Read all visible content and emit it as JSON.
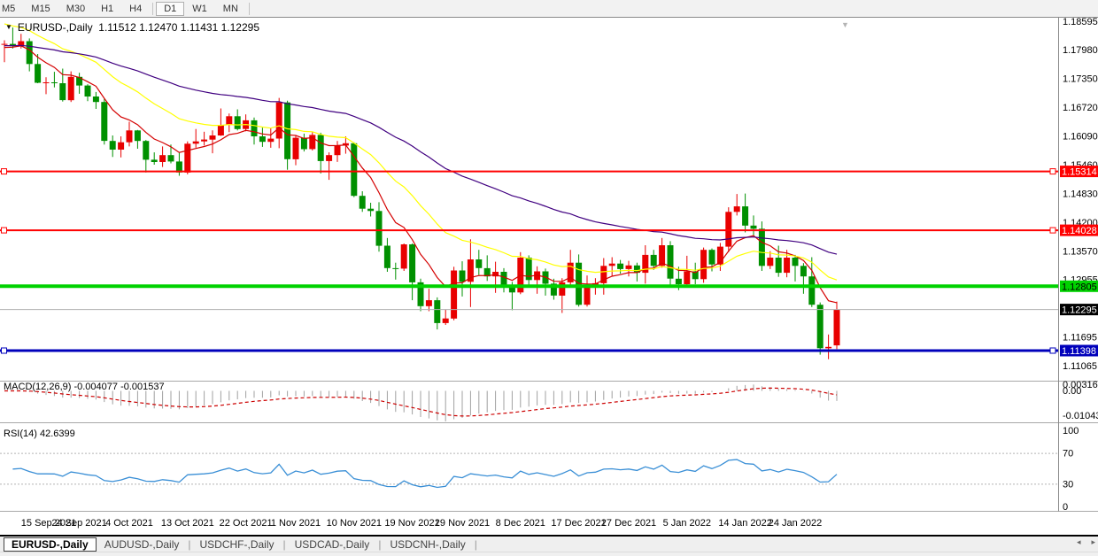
{
  "toolbar": {
    "timeframes": [
      {
        "label": "M5",
        "active": false
      },
      {
        "label": "M15",
        "active": false
      },
      {
        "label": "M30",
        "active": false
      },
      {
        "label": "H1",
        "active": false
      },
      {
        "label": "H4",
        "active": false
      },
      {
        "label": "D1",
        "active": true
      },
      {
        "label": "W1",
        "active": false
      },
      {
        "label": "MN",
        "active": false
      }
    ]
  },
  "chart_header": {
    "title": "EURUSD-,Daily  1.11512 1.12470 1.11431 1.12295"
  },
  "indicators": {
    "macd_label": "MACD(12,26,9) -0.004077 -0.001537",
    "rsi_label": "RSI(14) 42.6399"
  },
  "tabs": {
    "items": [
      "EURUSD-,Daily",
      "AUDUSD-,Daily",
      "USDCHF-,Daily",
      "USDCAD-,Daily",
      "USDCNH-,Daily"
    ],
    "active_index": 0,
    "scroll_left": "◂",
    "scroll_right": "▸"
  },
  "chart_data": {
    "type": "candlestick",
    "symbol": "EURUSD-,Daily",
    "timeframe": "D1",
    "last_ohlc": {
      "open": 1.11512,
      "high": 1.1247,
      "low": 1.11431,
      "close": 1.12295
    },
    "bull_color": "#e80000",
    "bear_color": "#009000",
    "candles": [
      [
        "13 Sep 2021",
        1.1809,
        1.1818,
        1.177,
        1.181
      ],
      [
        "14 Sep 2021",
        1.181,
        1.1846,
        1.18,
        1.1805
      ],
      [
        "15 Sep 2021",
        1.1805,
        1.1832,
        1.18,
        1.1816
      ],
      [
        "16 Sep 2021",
        1.1816,
        1.1822,
        1.175,
        1.1766
      ],
      [
        "17 Sep 2021",
        1.1766,
        1.1788,
        1.1724,
        1.1725
      ],
      [
        "20 Sep 2021",
        1.1725,
        1.1737,
        1.17,
        1.1726
      ],
      [
        "21 Sep 2021",
        1.1726,
        1.1749,
        1.1715,
        1.1724
      ],
      [
        "22 Sep 2021",
        1.1724,
        1.1756,
        1.1684,
        1.1687
      ],
      [
        "23 Sep 2021",
        1.1687,
        1.175,
        1.1683,
        1.1738
      ],
      [
        "24 Sep 2021",
        1.1738,
        1.1747,
        1.1701,
        1.1719
      ],
      [
        "27 Sep 2021",
        1.1719,
        1.1722,
        1.1685,
        1.1695
      ],
      [
        "28 Sep 2021",
        1.1695,
        1.1705,
        1.1668,
        1.1683
      ],
      [
        "29 Sep 2021",
        1.1683,
        1.169,
        1.159,
        1.1598
      ],
      [
        "30 Sep 2021",
        1.1598,
        1.161,
        1.1563,
        1.1579
      ],
      [
        "1 Oct 2021",
        1.1579,
        1.1608,
        1.1562,
        1.1595
      ],
      [
        "4 Oct 2021",
        1.1595,
        1.164,
        1.1586,
        1.1621
      ],
      [
        "5 Oct 2021",
        1.1621,
        1.1622,
        1.1581,
        1.1598
      ],
      [
        "6 Oct 2021",
        1.1598,
        1.16,
        1.1529,
        1.1557
      ],
      [
        "7 Oct 2021",
        1.1557,
        1.1573,
        1.1546,
        1.1552
      ],
      [
        "8 Oct 2021",
        1.1552,
        1.1586,
        1.1541,
        1.1567
      ],
      [
        "11 Oct 2021",
        1.1567,
        1.159,
        1.1549,
        1.1553
      ],
      [
        "12 Oct 2021",
        1.1553,
        1.1572,
        1.1522,
        1.1529
      ],
      [
        "13 Oct 2021",
        1.1529,
        1.1597,
        1.1525,
        1.1592
      ],
      [
        "14 Oct 2021",
        1.1592,
        1.1624,
        1.1583,
        1.1597
      ],
      [
        "15 Oct 2021",
        1.1597,
        1.1618,
        1.1588,
        1.1601
      ],
      [
        "18 Oct 2021",
        1.1601,
        1.1621,
        1.1571,
        1.161
      ],
      [
        "19 Oct 2021",
        1.161,
        1.1669,
        1.1609,
        1.1633
      ],
      [
        "20 Oct 2021",
        1.1633,
        1.1658,
        1.1617,
        1.1652
      ],
      [
        "21 Oct 2021",
        1.1652,
        1.1667,
        1.1621,
        1.1624
      ],
      [
        "22 Oct 2021",
        1.1624,
        1.1656,
        1.1619,
        1.1643
      ],
      [
        "25 Oct 2021",
        1.1643,
        1.1649,
        1.159,
        1.1608
      ],
      [
        "26 Oct 2021",
        1.1608,
        1.1627,
        1.1585,
        1.1596
      ],
      [
        "27 Oct 2021",
        1.1596,
        1.1626,
        1.1583,
        1.1603
      ],
      [
        "28 Oct 2021",
        1.1603,
        1.1692,
        1.1582,
        1.1682
      ],
      [
        "29 Oct 2021",
        1.1682,
        1.1686,
        1.1535,
        1.1558
      ],
      [
        "1 Nov 2021",
        1.1558,
        1.1609,
        1.1545,
        1.1605
      ],
      [
        "2 Nov 2021",
        1.1605,
        1.1614,
        1.1575,
        1.158
      ],
      [
        "3 Nov 2021",
        1.158,
        1.1617,
        1.1577,
        1.1611
      ],
      [
        "4 Nov 2021",
        1.1611,
        1.1616,
        1.1527,
        1.1554
      ],
      [
        "5 Nov 2021",
        1.1554,
        1.1573,
        1.1513,
        1.1567
      ],
      [
        "8 Nov 2021",
        1.1567,
        1.1598,
        1.1552,
        1.1588
      ],
      [
        "9 Nov 2021",
        1.1588,
        1.1608,
        1.157,
        1.1593
      ],
      [
        "10 Nov 2021",
        1.1593,
        1.1595,
        1.1475,
        1.1478
      ],
      [
        "11 Nov 2021",
        1.1478,
        1.1488,
        1.1443,
        1.145
      ],
      [
        "12 Nov 2021",
        1.145,
        1.1463,
        1.1433,
        1.1445
      ],
      [
        "15 Nov 2021",
        1.1445,
        1.1464,
        1.1356,
        1.1369
      ],
      [
        "16 Nov 2021",
        1.1369,
        1.1386,
        1.1312,
        1.132
      ],
      [
        "17 Nov 2021",
        1.132,
        1.1332,
        1.1295,
        1.1319
      ],
      [
        "18 Nov 2021",
        1.1319,
        1.1374,
        1.1314,
        1.1372
      ],
      [
        "19 Nov 2021",
        1.1372,
        1.1374,
        1.125,
        1.1289
      ],
      [
        "22 Nov 2021",
        1.1289,
        1.1297,
        1.1226,
        1.1237
      ],
      [
        "23 Nov 2021",
        1.1237,
        1.1275,
        1.1226,
        1.125
      ],
      [
        "24 Nov 2021",
        1.125,
        1.1256,
        1.1186,
        1.12
      ],
      [
        "25 Nov 2021",
        1.12,
        1.123,
        1.1196,
        1.121
      ],
      [
        "26 Nov 2021",
        1.121,
        1.1323,
        1.1206,
        1.1315
      ],
      [
        "29 Nov 2021",
        1.1315,
        1.1335,
        1.1258,
        1.129
      ],
      [
        "30 Nov 2021",
        1.129,
        1.1383,
        1.1235,
        1.1339
      ],
      [
        "1 Dec 2021",
        1.1339,
        1.136,
        1.1305,
        1.132
      ],
      [
        "2 Dec 2021",
        1.132,
        1.1348,
        1.1292,
        1.1302
      ],
      [
        "3 Dec 2021",
        1.1302,
        1.1334,
        1.1266,
        1.1312
      ],
      [
        "6 Dec 2021",
        1.1312,
        1.132,
        1.1267,
        1.1284
      ],
      [
        "7 Dec 2021",
        1.1284,
        1.129,
        1.1228,
        1.1267
      ],
      [
        "8 Dec 2021",
        1.1267,
        1.1355,
        1.1263,
        1.1343
      ],
      [
        "9 Dec 2021",
        1.1343,
        1.1348,
        1.128,
        1.1294
      ],
      [
        "10 Dec 2021",
        1.1294,
        1.1324,
        1.1264,
        1.1313
      ],
      [
        "13 Dec 2021",
        1.1313,
        1.1319,
        1.126,
        1.1286
      ],
      [
        "14 Dec 2021",
        1.1286,
        1.1297,
        1.1251,
        1.126
      ],
      [
        "15 Dec 2021",
        1.126,
        1.1298,
        1.1222,
        1.1289
      ],
      [
        "16 Dec 2021",
        1.1289,
        1.136,
        1.1281,
        1.1332
      ],
      [
        "17 Dec 2021",
        1.1332,
        1.135,
        1.1236,
        1.124
      ],
      [
        "20 Dec 2021",
        1.124,
        1.1304,
        1.1236,
        1.128
      ],
      [
        "21 Dec 2021",
        1.128,
        1.1298,
        1.1262,
        1.1287
      ],
      [
        "22 Dec 2021",
        1.1287,
        1.1342,
        1.1262,
        1.1325
      ],
      [
        "23 Dec 2021",
        1.1325,
        1.1344,
        1.1303,
        1.133
      ],
      [
        "24 Dec 2021",
        1.133,
        1.1338,
        1.1308,
        1.1318
      ],
      [
        "27 Dec 2021",
        1.1318,
        1.1336,
        1.1302,
        1.1326
      ],
      [
        "28 Dec 2021",
        1.1326,
        1.1332,
        1.1291,
        1.131
      ],
      [
        "29 Dec 2021",
        1.131,
        1.137,
        1.1286,
        1.1349
      ],
      [
        "30 Dec 2021",
        1.1349,
        1.136,
        1.1316,
        1.1325
      ],
      [
        "31 Dec 2021",
        1.1325,
        1.1386,
        1.1321,
        1.137
      ],
      [
        "3 Jan 2022",
        1.137,
        1.1379,
        1.1279,
        1.1297
      ],
      [
        "4 Jan 2022",
        1.1297,
        1.1323,
        1.1272,
        1.1285
      ],
      [
        "5 Jan 2022",
        1.1285,
        1.1347,
        1.128,
        1.1313
      ],
      [
        "6 Jan 2022",
        1.1313,
        1.1332,
        1.1285,
        1.1296
      ],
      [
        "7 Jan 2022",
        1.1296,
        1.1365,
        1.1288,
        1.136
      ],
      [
        "10 Jan 2022",
        1.136,
        1.1363,
        1.1313,
        1.1328
      ],
      [
        "11 Jan 2022",
        1.1328,
        1.1375,
        1.1314,
        1.1367
      ],
      [
        "12 Jan 2022",
        1.1367,
        1.1453,
        1.1355,
        1.1443
      ],
      [
        "13 Jan 2022",
        1.1443,
        1.1482,
        1.1435,
        1.1455
      ],
      [
        "14 Jan 2022",
        1.1455,
        1.1483,
        1.1398,
        1.1413
      ],
      [
        "17 Jan 2022",
        1.1413,
        1.1435,
        1.1392,
        1.1406
      ],
      [
        "18 Jan 2022",
        1.1406,
        1.1422,
        1.1314,
        1.1325
      ],
      [
        "19 Jan 2022",
        1.1325,
        1.1357,
        1.1318,
        1.1343
      ],
      [
        "20 Jan 2022",
        1.1343,
        1.1369,
        1.1301,
        1.131
      ],
      [
        "21 Jan 2022",
        1.131,
        1.136,
        1.13,
        1.1343
      ],
      [
        "24 Jan 2022",
        1.1343,
        1.1349,
        1.1291,
        1.1325
      ],
      [
        "25 Jan 2022",
        1.1325,
        1.1331,
        1.1264,
        1.1302
      ],
      [
        "26 Jan 2022",
        1.1302,
        1.1344,
        1.1235,
        1.124
      ],
      [
        "27 Jan 2022",
        1.124,
        1.1245,
        1.1131,
        1.1145
      ],
      [
        "28 Jan 2022",
        1.1145,
        1.1175,
        1.1121,
        1.1148
      ],
      [
        "31 Jan 2022",
        1.11512,
        1.1247,
        1.11431,
        1.12295
      ]
    ],
    "x_ticks": [
      {
        "label": "15 Sep 2021",
        "index": 2
      },
      {
        "label": "24 Sep 2021",
        "index": 9
      },
      {
        "label": "4 Oct 2021",
        "index": 15
      },
      {
        "label": "13 Oct 2021",
        "index": 22
      },
      {
        "label": "22 Oct 2021",
        "index": 29
      },
      {
        "label": "1 Nov 2021",
        "index": 35
      },
      {
        "label": "10 Nov 2021",
        "index": 42
      },
      {
        "label": "19 Nov 2021",
        "index": 49
      },
      {
        "label": "29 Nov 2021",
        "index": 55
      },
      {
        "label": "8 Dec 2021",
        "index": 62
      },
      {
        "label": "17 Dec 2021",
        "index": 69
      },
      {
        "label": "27 Dec 2021",
        "index": 75
      },
      {
        "label": "5 Jan 2022",
        "index": 82
      },
      {
        "label": "14 Jan 2022",
        "index": 89
      },
      {
        "label": "24 Jan 2022",
        "index": 95
      }
    ],
    "y_axis_labels": [
      "1.18595",
      "1.17980",
      "1.17350",
      "1.16720",
      "1.16090",
      "1.15460",
      "1.14830",
      "1.14200",
      "1.13570",
      "1.12955",
      "1.11695",
      "1.11065"
    ],
    "h_lines": [
      {
        "value": 1.15314,
        "label": "1.15314",
        "color": "#ff0000",
        "width": 2,
        "text_color": "#ffffff",
        "marker": true
      },
      {
        "value": 1.14028,
        "label": "1.14028",
        "color": "#ff0000",
        "width": 2,
        "text_color": "#ffffff",
        "marker": true
      },
      {
        "value": 1.12805,
        "label": "1.12805",
        "color": "#00d200",
        "width": 4,
        "text_color": "#000000",
        "marker": false
      },
      {
        "value": 1.11398,
        "label": "1.11398",
        "color": "#0000bb",
        "width": 3,
        "text_color": "#ffffff",
        "marker": true
      }
    ],
    "current_price": {
      "value": 1.12295,
      "label": "1.12295",
      "box_color": "#000000",
      "text_color": "#ffffff"
    },
    "moving_averages": [
      {
        "type": "ema",
        "period": 8,
        "color": "#d40000",
        "seed": 1.18
      },
      {
        "type": "ema",
        "period": 21,
        "color": "#ffff00",
        "seed": 1.1858
      },
      {
        "type": "ema",
        "period": 55,
        "color": "#400080",
        "seed": 1.1806
      }
    ],
    "macd": {
      "fast": 12,
      "slow": 26,
      "signal": 9,
      "values_display": [
        "-0.004077",
        "-0.001537"
      ],
      "axis_labels": [
        "0.003165",
        "0.00",
        "-0.01043"
      ],
      "hist_color": "#a0a0a0",
      "signal_color": "#cc0000"
    },
    "rsi": {
      "period": 14,
      "value_display": "42.6399",
      "levels": [
        70,
        30
      ],
      "axis_labels": [
        "100",
        "70",
        "30",
        "0"
      ],
      "color": "#3a8fd6",
      "level_color": "#b4b4b4"
    }
  }
}
